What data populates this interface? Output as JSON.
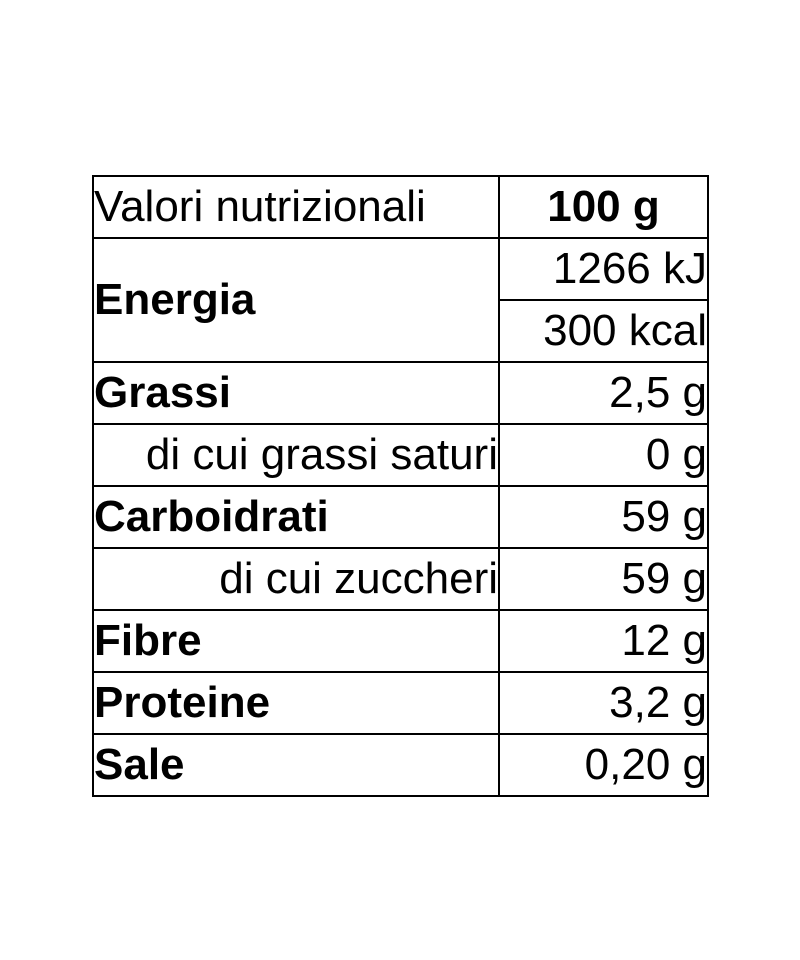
{
  "page": {
    "background_color": "#ffffff",
    "text_color": "#000000",
    "border_color": "#000000"
  },
  "table": {
    "header": {
      "label": "Valori nutrizionali",
      "amount": "100 g"
    },
    "energy": {
      "label": "Energia",
      "kj": "1266 kJ",
      "kcal": "300 kcal"
    },
    "rows": [
      {
        "label": "Grassi",
        "value": "2,5 g",
        "style": "bold"
      },
      {
        "label": "di cui grassi saturi",
        "value": "0 g",
        "style": "sub"
      },
      {
        "label": "Carboidrati",
        "value": "59 g",
        "style": "bold"
      },
      {
        "label": "di cui zuccheri",
        "value": "59 g",
        "style": "sub"
      },
      {
        "label": "Fibre",
        "value": "12 g",
        "style": "bold"
      },
      {
        "label": "Proteine",
        "value": "3,2 g",
        "style": "bold"
      },
      {
        "label": "Sale",
        "value": "0,20 g",
        "style": "bold"
      }
    ]
  }
}
